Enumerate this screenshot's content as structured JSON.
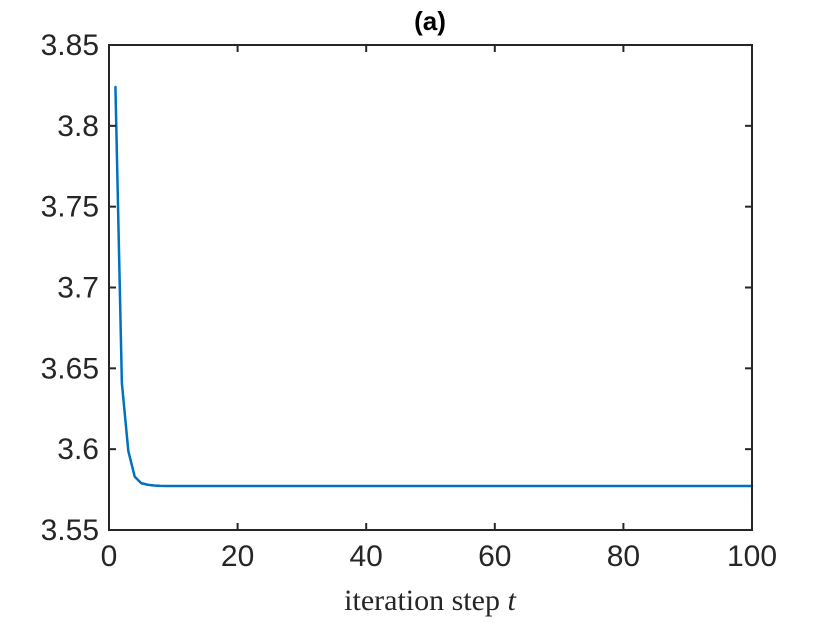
{
  "chart_data": {
    "type": "line",
    "title": "(a)",
    "xlabel": "iteration step",
    "xlabel_variable": "t",
    "ylabel": "",
    "xlim": [
      0,
      100
    ],
    "ylim": [
      3.55,
      3.85
    ],
    "x_ticks": [
      0,
      20,
      40,
      60,
      80,
      100
    ],
    "x_tick_labels": [
      "0",
      "20",
      "40",
      "60",
      "80",
      "100"
    ],
    "y_ticks": [
      3.55,
      3.6,
      3.65,
      3.7,
      3.75,
      3.8,
      3.85
    ],
    "y_tick_labels": [
      "3.55",
      "3.6",
      "3.65",
      "3.7",
      "3.75",
      "3.8",
      "3.85"
    ],
    "grid": false,
    "colors": {
      "line": "#0072BD",
      "axes": "#262626"
    },
    "series": [
      {
        "x": [
          1,
          2,
          3,
          4,
          5,
          6,
          7,
          8,
          9,
          10,
          20,
          30,
          40,
          50,
          60,
          70,
          80,
          90,
          100
        ],
        "y": [
          3.824,
          3.641,
          3.599,
          3.583,
          3.579,
          3.578,
          3.5775,
          3.5773,
          3.5772,
          3.5772,
          3.5772,
          3.5772,
          3.5772,
          3.5772,
          3.5772,
          3.5772,
          3.5772,
          3.5772,
          3.5772
        ]
      }
    ]
  }
}
